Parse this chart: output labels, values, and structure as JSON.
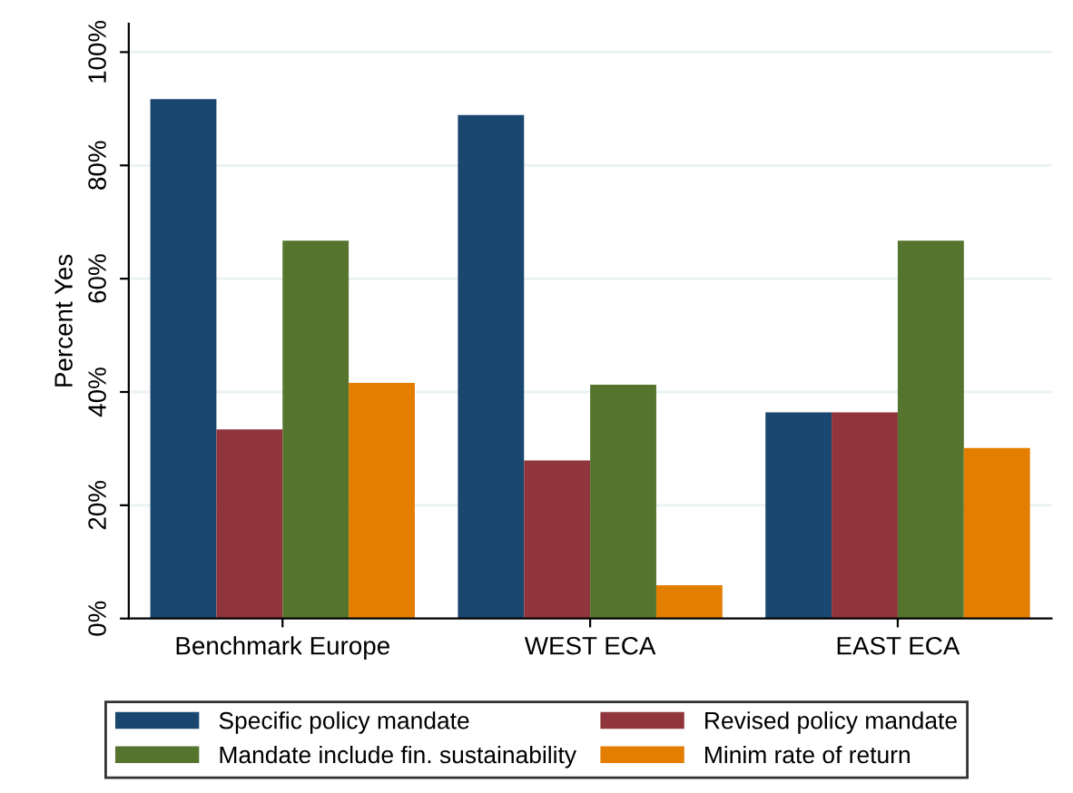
{
  "chart_data": {
    "type": "bar",
    "ylabel": "Percent Yes",
    "categories": [
      "Benchmark Europe",
      "WEST ECA",
      "EAST ECA"
    ],
    "series": [
      {
        "name": "Specific policy mandate",
        "color": "#1a476f",
        "values": [
          91.7,
          88.9,
          36.4
        ]
      },
      {
        "name": "Revised policy mandate",
        "color": "#90353b",
        "values": [
          33.4,
          27.9,
          36.4
        ]
      },
      {
        "name": "Mandate include fin. sustainability",
        "color": "#55752f",
        "values": [
          66.7,
          41.3,
          66.7
        ]
      },
      {
        "name": "Minim rate of return",
        "color": "#e37e00",
        "values": [
          41.6,
          5.9,
          30.1
        ]
      }
    ],
    "ylim": [
      0,
      105
    ],
    "yticks": [
      {
        "value": 0,
        "label": "0%"
      },
      {
        "value": 20,
        "label": "20%"
      },
      {
        "value": 40,
        "label": "40%"
      },
      {
        "value": 60,
        "label": "60%"
      },
      {
        "value": 80,
        "label": "80%"
      },
      {
        "value": 100,
        "label": "100%"
      }
    ],
    "grid": "y",
    "legend": "bottom"
  }
}
